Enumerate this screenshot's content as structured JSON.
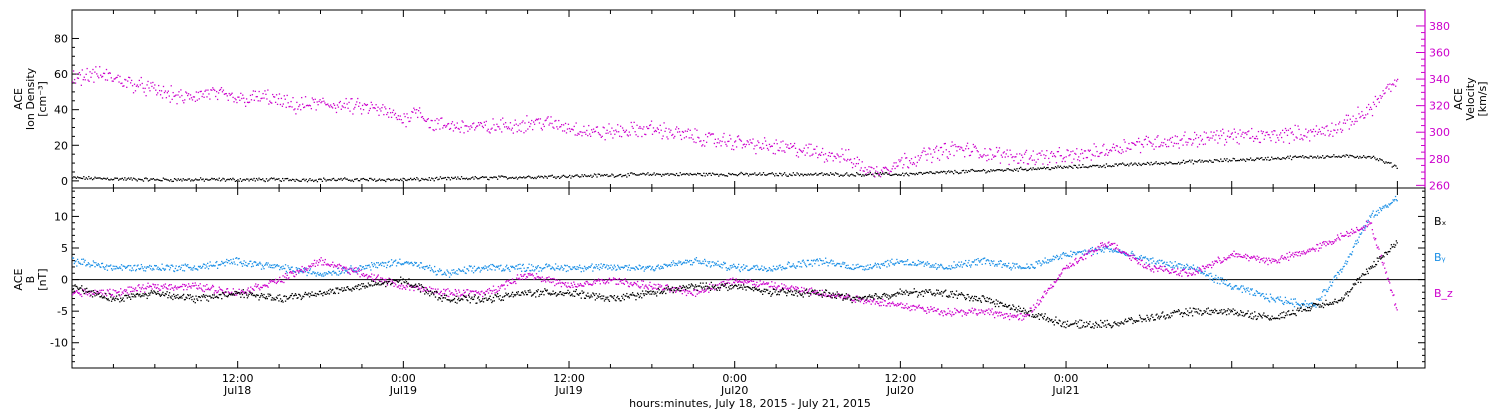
{
  "chart_data": [
    {
      "type": "scatter",
      "panel": "top",
      "ylabel_left": [
        "ACE",
        "Ion Density",
        "[cm⁻³]"
      ],
      "ylabel_right": [
        "ACE",
        "Velocity",
        "[km/s]"
      ],
      "ylim_left": [
        -4,
        96
      ],
      "yticks_left": [
        0,
        20,
        40,
        60,
        80
      ],
      "ylim_right": [
        258,
        392
      ],
      "yticks_right": [
        260,
        280,
        300,
        320,
        340,
        360,
        380
      ],
      "right_axis_color": "#cc00cc",
      "xlim_hours": [
        0,
        98
      ],
      "series": [
        {
          "axis": "left",
          "color": "#000000",
          "x": [
            0,
            6,
            12,
            18,
            24,
            30,
            36,
            42,
            48,
            54,
            60,
            66,
            72,
            78,
            84,
            90,
            94,
            96
          ],
          "y": [
            2,
            1,
            1,
            1,
            1,
            2,
            3,
            4,
            4,
            4,
            4,
            6,
            8,
            10,
            12,
            14,
            14,
            8
          ]
        },
        {
          "axis": "right",
          "color": "#cc00cc",
          "x": [
            0,
            2,
            4,
            6,
            8,
            10,
            12,
            14,
            16,
            18,
            20,
            22,
            24,
            25,
            26,
            30,
            34,
            38,
            42,
            46,
            48,
            50,
            52,
            54,
            56,
            58,
            60,
            62,
            64,
            66,
            68,
            70,
            72,
            74,
            76,
            78,
            80,
            82,
            84,
            86,
            88,
            90,
            92,
            93,
            94,
            95,
            96
          ],
          "y": [
            342,
            344,
            338,
            332,
            326,
            330,
            325,
            327,
            320,
            322,
            320,
            318,
            310,
            318,
            306,
            304,
            308,
            300,
            303,
            295,
            293,
            290,
            288,
            285,
            282,
            270,
            278,
            284,
            288,
            285,
            282,
            282,
            282,
            285,
            290,
            293,
            294,
            296,
            298,
            297,
            299,
            300,
            305,
            312,
            318,
            330,
            338
          ]
        }
      ]
    },
    {
      "type": "scatter",
      "panel": "bottom",
      "ylabel_left": [
        "ACE",
        "B",
        "[nT]"
      ],
      "ylim": [
        -14,
        14.5
      ],
      "yticks": [
        -10,
        -5,
        0,
        5,
        10
      ],
      "zero_line": true,
      "xlim_hours": [
        0,
        98
      ],
      "legend": [
        "Bₓ",
        "Bᵧ",
        "B_z"
      ],
      "legend_colors": [
        "#000000",
        "#1a8fe6",
        "#cc00cc"
      ],
      "series": [
        {
          "name": "Bₓ",
          "color": "#000000",
          "x": [
            0,
            3,
            6,
            9,
            12,
            15,
            18,
            21,
            24,
            27,
            30,
            33,
            36,
            39,
            42,
            45,
            48,
            51,
            54,
            57,
            60,
            63,
            66,
            69,
            72,
            75,
            78,
            81,
            84,
            87,
            90,
            92,
            94,
            96
          ],
          "y": [
            -1,
            -3,
            -2,
            -3,
            -2,
            -3,
            -2,
            -1,
            0,
            -3,
            -3,
            -2,
            -2,
            -3,
            -2,
            -1,
            -1,
            -2,
            -2,
            -3,
            -2,
            -2,
            -3,
            -5,
            -7,
            -7,
            -6,
            -5,
            -5,
            -6,
            -4,
            -3,
            2,
            6
          ]
        },
        {
          "name": "Bᵧ",
          "color": "#1a8fe6",
          "x": [
            0,
            3,
            6,
            9,
            12,
            15,
            18,
            21,
            24,
            27,
            30,
            33,
            36,
            39,
            42,
            45,
            48,
            51,
            54,
            57,
            60,
            63,
            66,
            69,
            72,
            75,
            78,
            81,
            84,
            87,
            90,
            92,
            94,
            96
          ],
          "y": [
            3,
            2,
            2,
            2,
            3,
            2,
            1,
            2,
            3,
            1,
            2,
            2,
            2,
            2,
            2,
            3,
            2,
            2,
            3,
            2,
            3,
            2,
            3,
            2,
            4,
            5,
            3,
            2,
            -1,
            -3,
            -4,
            2,
            10,
            13
          ]
        },
        {
          "name": "B_z",
          "color": "#cc00cc",
          "x": [
            0,
            3,
            6,
            9,
            12,
            15,
            18,
            21,
            24,
            27,
            30,
            33,
            36,
            39,
            42,
            45,
            48,
            51,
            54,
            57,
            60,
            63,
            66,
            69,
            72,
            75,
            78,
            81,
            84,
            87,
            90,
            92,
            94,
            96
          ],
          "y": [
            -2,
            -2,
            -1,
            -1,
            -2,
            0,
            3,
            1,
            -1,
            -2,
            -2,
            1,
            -1,
            0,
            -1,
            -2,
            0,
            -1,
            -2,
            -3,
            -4,
            -5,
            -5,
            -6,
            2,
            6,
            2,
            1,
            4,
            3,
            5,
            7,
            9,
            -5
          ]
        }
      ]
    }
  ],
  "x_axis": {
    "ticks": [
      {
        "hour": 12,
        "time": "12:00",
        "date": "Jul18"
      },
      {
        "hour": 24,
        "time": "0:00",
        "date": "Jul19"
      },
      {
        "hour": 36,
        "time": "12:00",
        "date": "Jul19"
      },
      {
        "hour": 48,
        "time": "0:00",
        "date": "Jul20"
      },
      {
        "hour": 60,
        "time": "12:00",
        "date": "Jul20"
      },
      {
        "hour": 72,
        "time": "0:00",
        "date": "Jul21"
      }
    ],
    "label": "hours:minutes, July 18, 2015 - July 21, 2015"
  }
}
